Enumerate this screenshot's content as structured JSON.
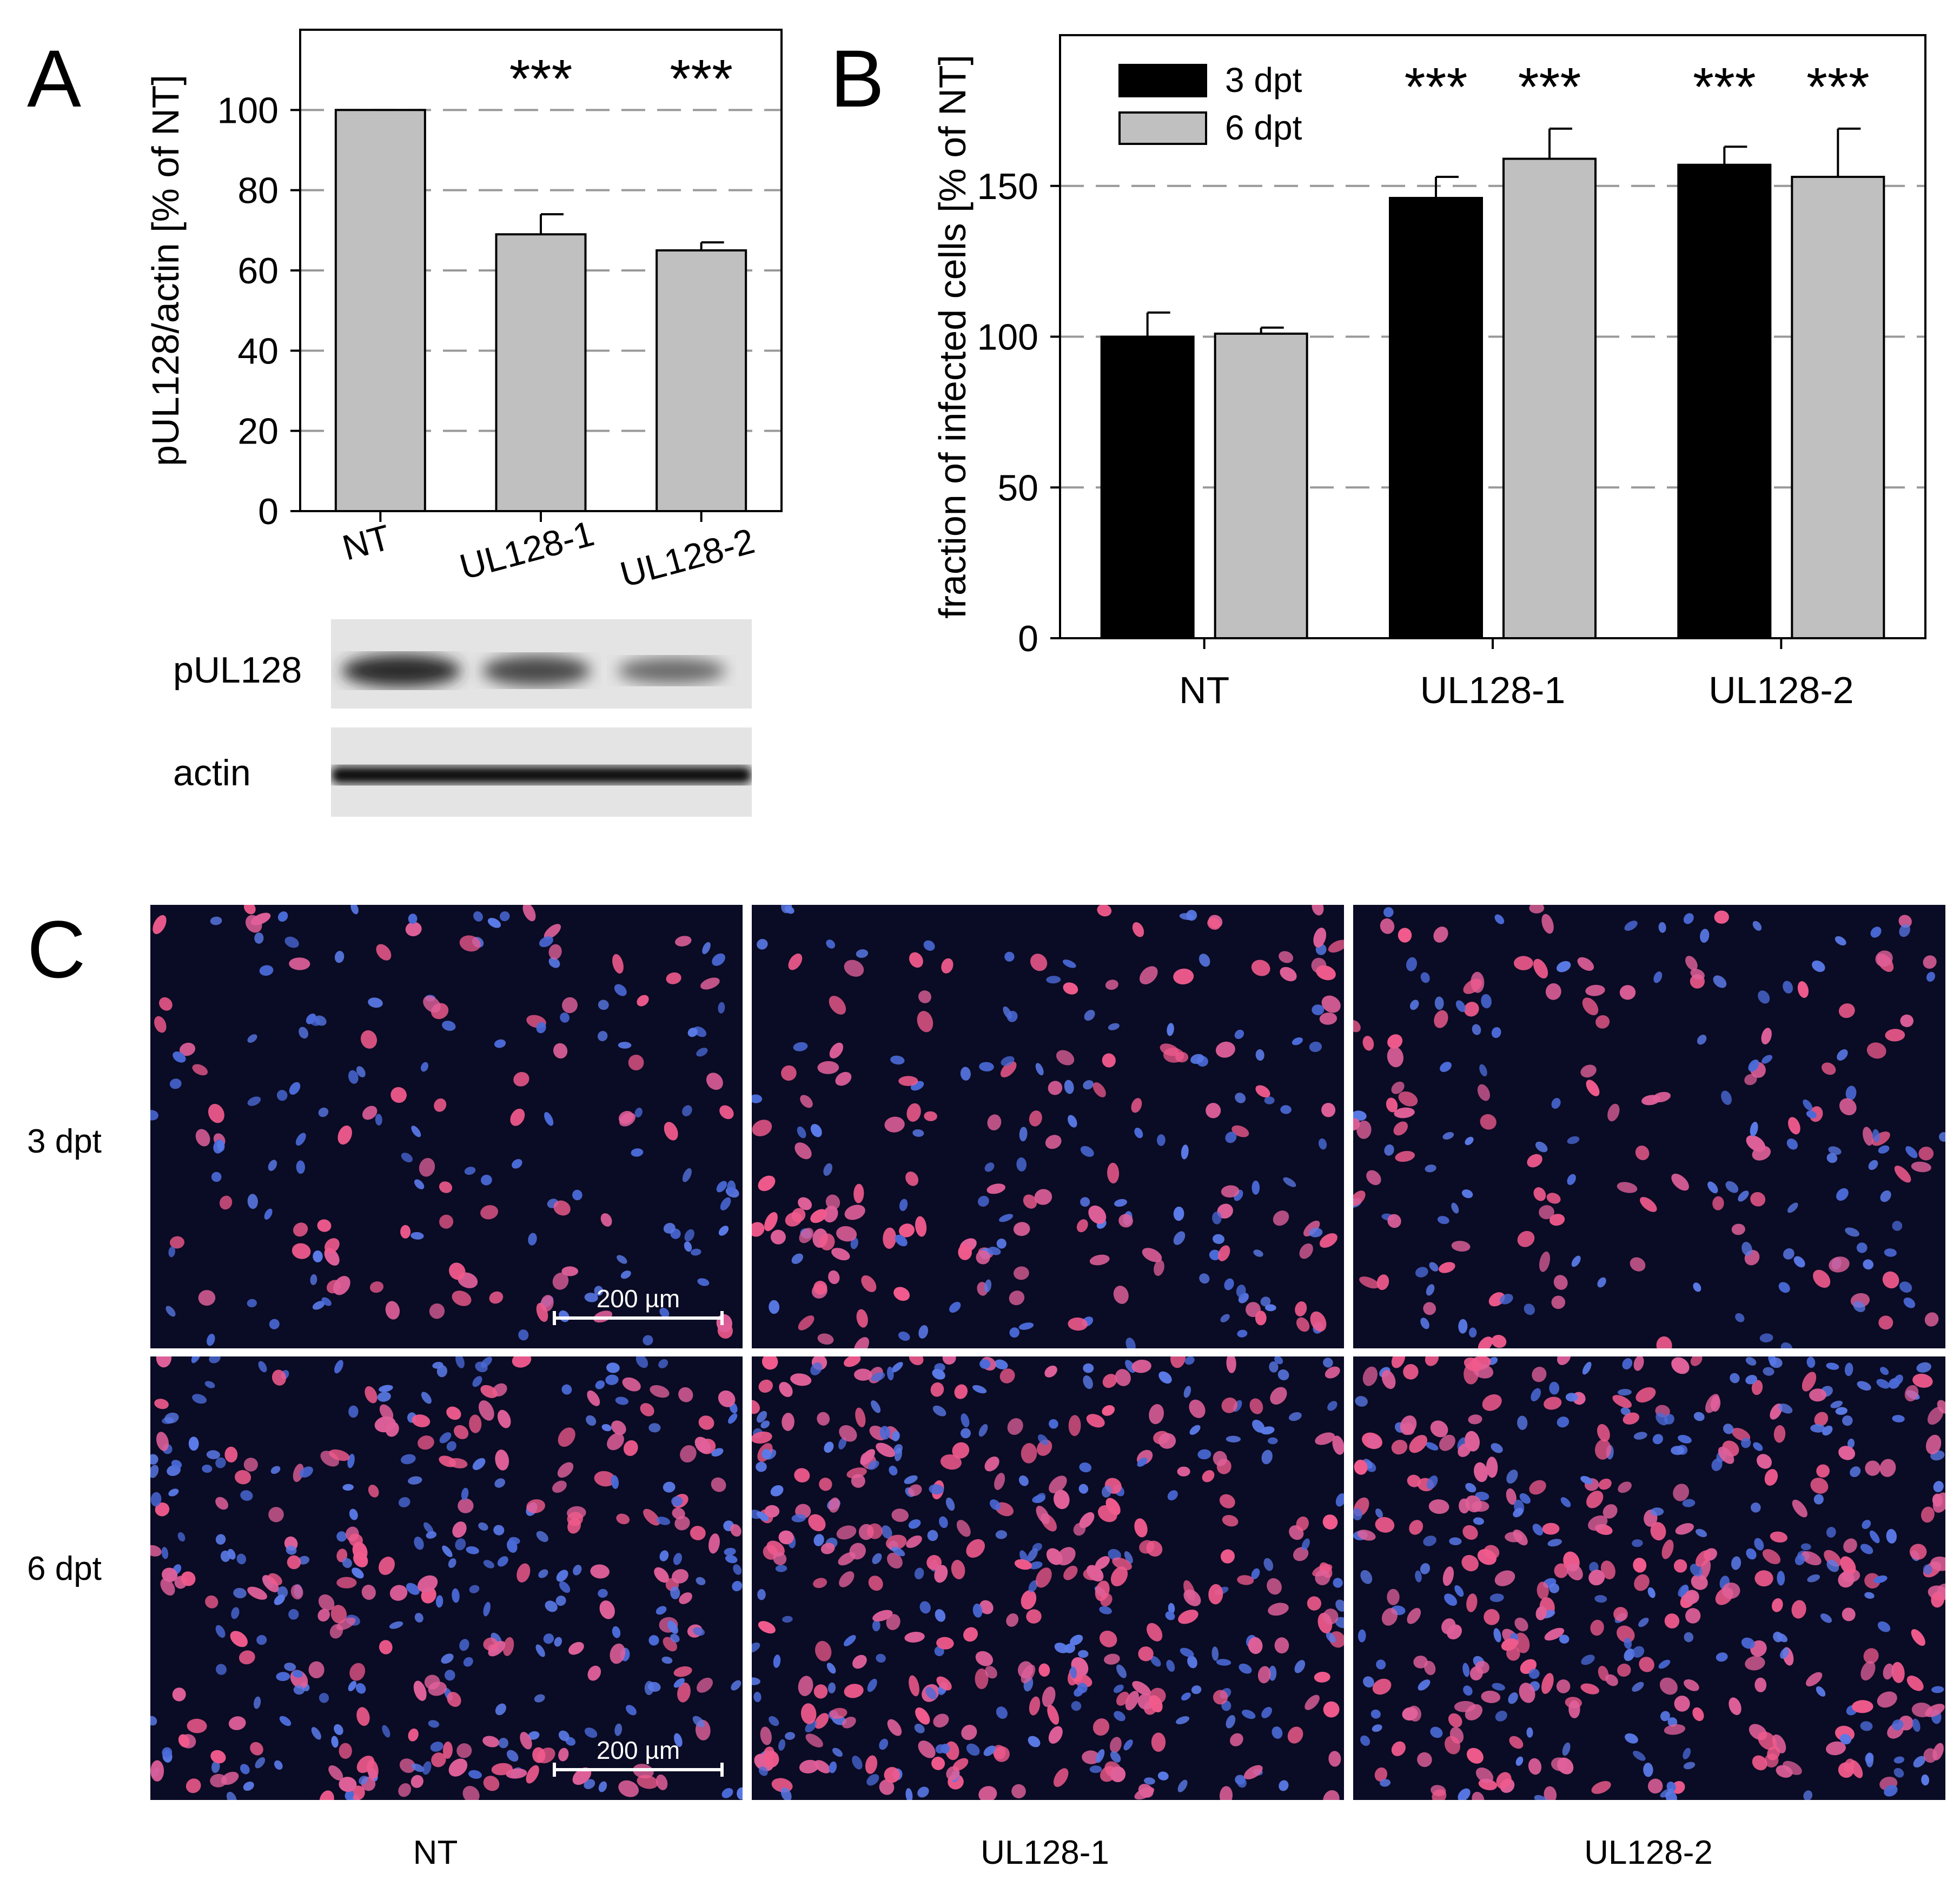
{
  "panels": {
    "a": "A",
    "b": "B",
    "c": "C"
  },
  "chart_data": [
    {
      "type": "bar",
      "panel": "A",
      "categories": [
        "NT",
        "UL128-1",
        "UL128-2"
      ],
      "values": [
        100,
        69,
        65
      ],
      "errors": [
        0,
        5,
        2
      ],
      "significance": [
        "",
        "***",
        "***"
      ],
      "ylabel": "pUL128/actin [% of NT]",
      "ylim": [
        0,
        120
      ],
      "yticks": [
        0,
        20,
        40,
        60,
        80,
        100
      ],
      "grid": "dashed horizontal",
      "bar_color": "#c0c0c0"
    },
    {
      "type": "bar",
      "panel": "B",
      "categories": [
        "NT",
        "UL128-1",
        "UL128-2"
      ],
      "series": [
        {
          "name": "3 dpt",
          "color": "#000000",
          "values": [
            100,
            146,
            157
          ],
          "errors": [
            8,
            7,
            6
          ]
        },
        {
          "name": "6 dpt",
          "color": "#c0c0c0",
          "values": [
            101,
            159,
            153
          ],
          "errors": [
            2,
            10,
            16
          ]
        }
      ],
      "significance": [
        [
          "",
          ""
        ],
        [
          "***",
          "***"
        ],
        [
          "***",
          "***"
        ]
      ],
      "ylabel": "fraction of infected cells [% of NT]",
      "ylim": [
        0,
        200
      ],
      "yticks": [
        0,
        50,
        100,
        150
      ],
      "grid": "dashed horizontal",
      "legend_position": "top-left"
    }
  ],
  "blot": {
    "rows": [
      "pUL128",
      "actin"
    ]
  },
  "micrographs": {
    "rows": [
      "3 dpt",
      "6 dpt"
    ],
    "columns": [
      "NT",
      "UL128-1",
      "UL128-2"
    ],
    "scale_bar": "200 µm"
  }
}
